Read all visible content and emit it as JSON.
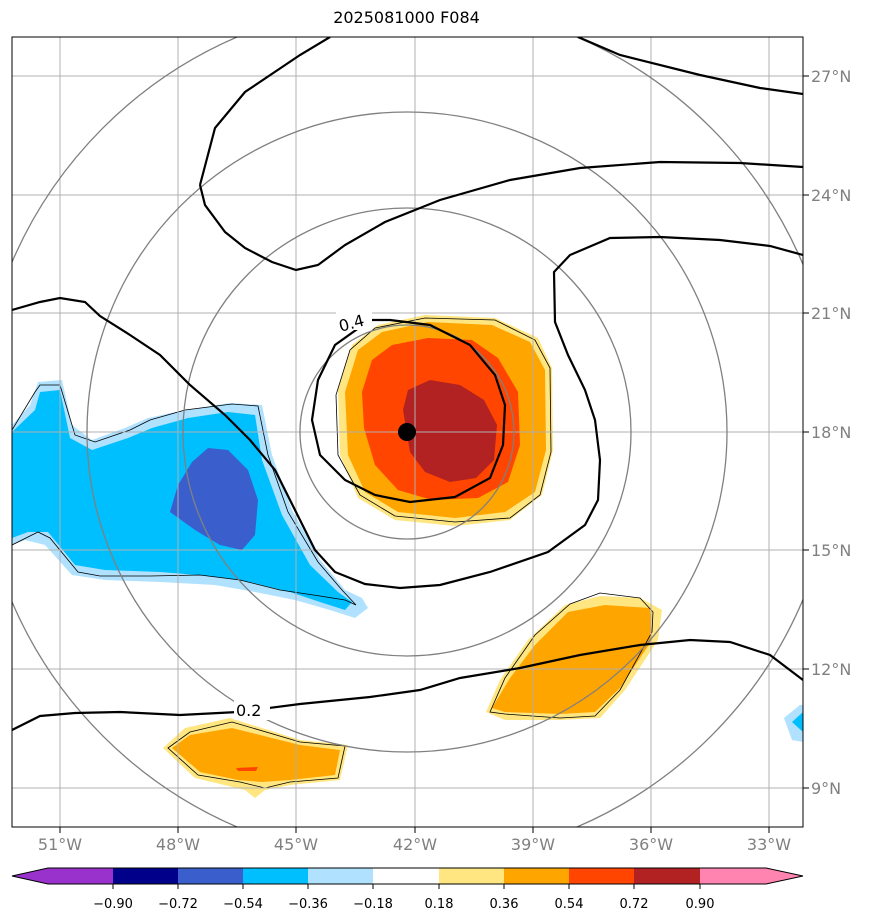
{
  "title": "2025081000 F084",
  "map": {
    "lon_labels": [
      "51°W",
      "48°W",
      "45°W",
      "42°W",
      "39°W",
      "36°W",
      "33°W"
    ],
    "lat_labels": [
      "27°N",
      "24°N",
      "21°N",
      "18°N",
      "15°N",
      "12°N",
      "9°N"
    ],
    "center_marker": {
      "lon": -42.2,
      "lat": 18.0,
      "color": "#000000"
    },
    "contour_labels": [
      "0.4",
      "0.2"
    ],
    "range_ring_color": "#808080",
    "grid_color": "#b0b0b0"
  },
  "colorbar": {
    "tick_labels": [
      "−0.90",
      "−0.72",
      "−0.54",
      "−0.36",
      "−0.18",
      "0.18",
      "0.36",
      "0.54",
      "0.72",
      "0.90"
    ],
    "colors": [
      "#9932cc",
      "#00008b",
      "#3a5fcd",
      "#00bfff",
      "#b0e2ff",
      "#ffffff",
      "#ffe680",
      "#ffa500",
      "#ff4500",
      "#b22222",
      "#ff85b0"
    ]
  }
}
